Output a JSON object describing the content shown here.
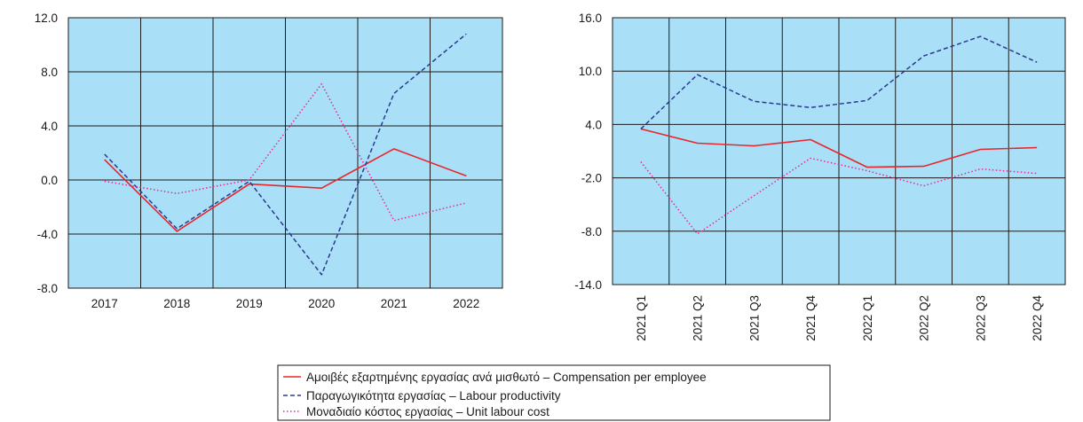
{
  "chart_data": [
    {
      "type": "line",
      "categories": [
        "2017",
        "2018",
        "2019",
        "2020",
        "2021",
        "2022"
      ],
      "ylim": [
        -8.0,
        12.0
      ],
      "yticks": [
        "12.0",
        "8.0",
        "4.0",
        "0.0",
        "-4.0",
        "-8.0"
      ],
      "ytick_values": [
        12,
        8,
        4,
        0,
        -4,
        -8
      ],
      "grid": true,
      "plot_background": "#a9dff7",
      "series": [
        {
          "name": "Αμοιβές εξαρτημένης εργασίας ανά μισθωτό – Compensation per employee",
          "key": "compensation",
          "values": [
            1.5,
            -3.8,
            -0.3,
            -0.6,
            2.3,
            0.3
          ]
        },
        {
          "name": "Παραγωγικότητα εργασίας – Labour productivity",
          "key": "productivity",
          "values": [
            1.9,
            -3.6,
            -0.1,
            -7.0,
            6.4,
            10.8
          ]
        },
        {
          "name": "Μοναδιαίο κόστος εργασίας – Unit labour cost",
          "key": "ulc",
          "values": [
            -0.1,
            -1.0,
            0.0,
            7.1,
            -3.0,
            -1.7
          ]
        }
      ]
    },
    {
      "type": "line",
      "categories": [
        "2021 Q1",
        "2021 Q2",
        "2021 Q3",
        "2021 Q4",
        "2022 Q1",
        "2022 Q2",
        "2022 Q3",
        "2022 Q4"
      ],
      "ylim": [
        -14.0,
        16.0
      ],
      "yticks": [
        "16.0",
        "10.0",
        "4.0",
        "-2.0",
        "-8.0",
        "-14.0"
      ],
      "ytick_values": [
        16,
        10,
        4,
        -2,
        -8,
        -14
      ],
      "grid": true,
      "plot_background": "#a9dff7",
      "series": [
        {
          "name": "Αμοιβές εξαρτημένης εργασίας ανά μισθωτό – Compensation per employee",
          "key": "compensation",
          "values": [
            3.5,
            1.9,
            1.6,
            2.3,
            -0.8,
            -0.7,
            1.2,
            1.4
          ]
        },
        {
          "name": "Παραγωγικότητα εργασίας – Labour productivity",
          "key": "productivity",
          "values": [
            3.5,
            9.6,
            6.6,
            5.9,
            6.7,
            11.7,
            13.9,
            11.0
          ]
        },
        {
          "name": "Μοναδιαίο κόστος εργασίας – Unit labour cost",
          "key": "ulc",
          "values": [
            -0.2,
            -8.3,
            -4.0,
            0.2,
            -1.2,
            -2.9,
            -1.0,
            -1.5
          ]
        }
      ]
    }
  ],
  "legend": {
    "placement": "bottom-center",
    "items": [
      {
        "key": "compensation",
        "label": "Αμοιβές εξαρτημένης εργασίας ανά μισθωτό – Compensation per employee",
        "color": "#e8262b",
        "style": "solid"
      },
      {
        "key": "productivity",
        "label": "Παραγωγικότητα εργασίας – Labour productivity",
        "color": "#2b3990",
        "style": "dashed"
      },
      {
        "key": "ulc",
        "label": "Μοναδιαίο κόστος εργασίας – Unit labour cost",
        "color": "#e6299b",
        "style": "dotted"
      }
    ]
  }
}
